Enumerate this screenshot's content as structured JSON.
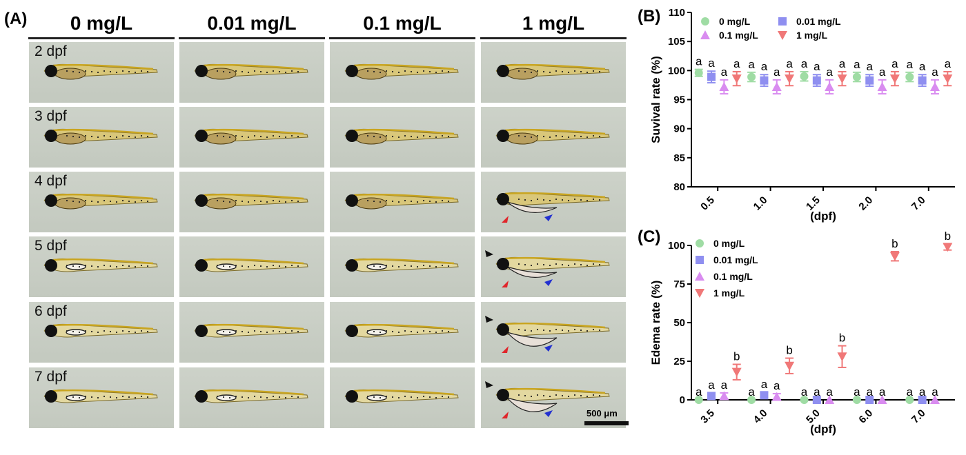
{
  "panel_a": {
    "letter": "(A)",
    "columns": [
      {
        "label": "0 mg/L"
      },
      {
        "label": "0.01 mg/L"
      },
      {
        "label": "0.1 mg/L"
      },
      {
        "label": "1 mg/L"
      }
    ],
    "rows": [
      {
        "label": "2 dpf"
      },
      {
        "label": "3 dpf"
      },
      {
        "label": "4 dpf"
      },
      {
        "label": "5 dpf"
      },
      {
        "label": "6 dpf"
      },
      {
        "label": "7 dpf"
      }
    ],
    "scale_bar": "500 μm",
    "arrow_colors": {
      "black": "#111111",
      "red": "#e0262b",
      "blue": "#2230d0"
    }
  },
  "panel_b": {
    "letter": "(B)"
  },
  "panel_c": {
    "letter": "(C)"
  },
  "chart_data": [
    {
      "type": "scatter",
      "panel": "(B)",
      "ylabel": "Suvival rate (%)",
      "xlabel": "(dpf)",
      "categories": [
        "0.5",
        "1.0",
        "1.5",
        "2.0",
        "7.0"
      ],
      "ylim": [
        80,
        110
      ],
      "yticks": [
        80,
        85,
        90,
        95,
        100,
        105,
        110
      ],
      "legend_position": "top",
      "series": [
        {
          "name": "0 mg/L",
          "marker": "circle",
          "color": "#9fdca4",
          "values": [
            99.6,
            98.9,
            99.0,
            98.9,
            98.9
          ],
          "errors": [
            0.6,
            0.8,
            0.8,
            0.8,
            0.8
          ],
          "labels": [
            "a",
            "a",
            "a",
            "a",
            "a"
          ]
        },
        {
          "name": "0.01 mg/L",
          "marker": "square",
          "color": "#8f8ff0",
          "values": [
            98.9,
            98.3,
            98.3,
            98.3,
            98.3
          ],
          "errors": [
            1.0,
            1.0,
            1.0,
            1.0,
            1.0
          ],
          "labels": [
            "a",
            "a",
            "a",
            "a",
            "a"
          ]
        },
        {
          "name": "0.1 mg/L",
          "marker": "triangle-up",
          "color": "#d98cf0",
          "values": [
            97.2,
            97.2,
            97.2,
            97.2,
            97.2
          ],
          "errors": [
            1.2,
            1.2,
            1.2,
            1.2,
            1.2
          ],
          "labels": [
            "a",
            "a",
            "a",
            "a",
            "a"
          ]
        },
        {
          "name": "1 mg/L",
          "marker": "triangle-down",
          "color": "#f07878",
          "values": [
            98.6,
            98.6,
            98.6,
            98.6,
            98.6
          ],
          "errors": [
            1.2,
            1.2,
            1.2,
            1.2,
            1.2
          ],
          "labels": [
            "a",
            "a",
            "a",
            "a",
            "a"
          ]
        }
      ]
    },
    {
      "type": "scatter",
      "panel": "(C)",
      "ylabel": "Edema rate (%)",
      "xlabel": "(dpf)",
      "categories": [
        "3.5",
        "4.0",
        "5.0",
        "6.0",
        "7.0"
      ],
      "ylim": [
        0,
        100
      ],
      "yticks": [
        0,
        25,
        50,
        75,
        100
      ],
      "zero_line": "dotted",
      "legend_position": "top-left",
      "series": [
        {
          "name": "0 mg/L",
          "marker": "circle",
          "color": "#9fdca4",
          "values": [
            0,
            0,
            0,
            0,
            0
          ],
          "errors": [
            0,
            0,
            0,
            0,
            0
          ],
          "labels": [
            "a",
            "a",
            "a",
            "a",
            "a"
          ]
        },
        {
          "name": "0.01 mg/L",
          "marker": "square",
          "color": "#8f8ff0",
          "values": [
            2.5,
            3,
            0,
            0,
            0
          ],
          "errors": [
            2,
            2,
            0,
            0,
            0
          ],
          "labels": [
            "a",
            "a",
            "a",
            "a",
            "a"
          ]
        },
        {
          "name": "0.1 mg/L",
          "marker": "triangle-up",
          "color": "#d98cf0",
          "values": [
            2.5,
            2,
            0,
            0,
            0
          ],
          "errors": [
            2,
            2,
            0,
            0,
            0
          ],
          "labels": [
            "a",
            "a",
            "a",
            "a",
            "a"
          ]
        },
        {
          "name": "1 mg/L",
          "marker": "triangle-down",
          "color": "#f07878",
          "values": [
            18,
            22,
            28,
            93,
            99
          ],
          "errors": [
            5,
            5,
            7,
            3,
            2
          ],
          "labels": [
            "b",
            "b",
            "b",
            "b",
            "b"
          ]
        }
      ]
    }
  ]
}
